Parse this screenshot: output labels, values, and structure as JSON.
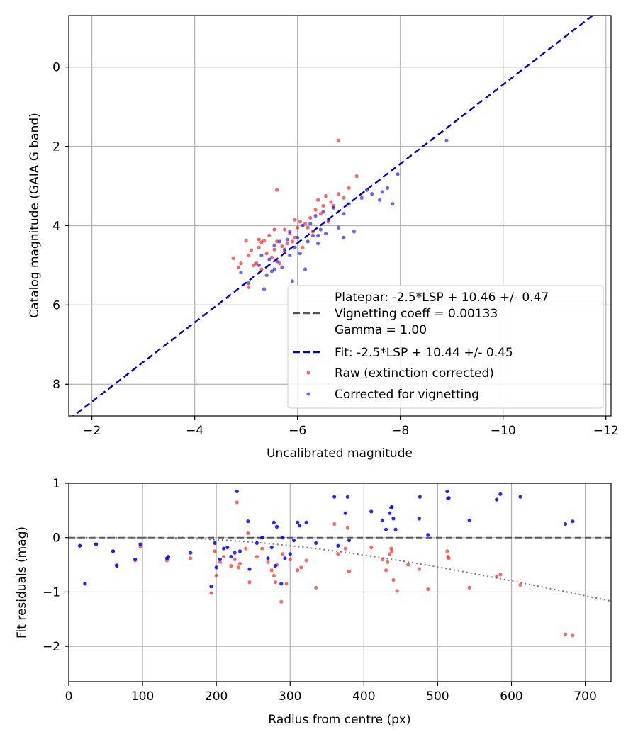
{
  "chart_data": [
    {
      "type": "scatter",
      "xlabel": "Uncalibrated magnitude",
      "ylabel": "Catalog magnitude (GAIA G band)",
      "xlim": [
        -1.55,
        -12.1
      ],
      "ylim": [
        8.8,
        -1.3
      ],
      "x_ticks": [
        -2,
        -4,
        -6,
        -8,
        -10,
        -12
      ],
      "x_tick_labels": [
        "−2",
        "−4",
        "−6",
        "−8",
        "−10",
        "−12"
      ],
      "y_ticks": [
        0,
        2,
        4,
        6,
        8
      ],
      "y_tick_labels": [
        "0",
        "2",
        "4",
        "6",
        "8"
      ],
      "grid": true,
      "legend_position": "bottom-right",
      "legend": {
        "platepar_line1": "Platepar: -2.5*LSP + 10.46 +/- 0.47",
        "platepar_line2": "Vignetting coeff = 0.00133",
        "platepar_line3": "Gamma = 1.00",
        "fit_label": "Fit: -2.5*LSP + 10.44 +/- 0.45",
        "raw_label": "Raw (extinction corrected)",
        "corrected_label": "Corrected for vignetting"
      },
      "colors": {
        "raw": "#ff0000",
        "corrected": "#0000ff",
        "fit": "#0000cc",
        "platepar": "#555555"
      },
      "fit_line": {
        "slope": 1,
        "intercept": 10.44,
        "x_range": [
          -1.55,
          -12.1
        ]
      },
      "series": [
        {
          "name": "Raw (extinction corrected)",
          "points": [
            [
              -4.75,
              4.82
            ],
            [
              -4.85,
              5.05
            ],
            [
              -5.0,
              4.38
            ],
            [
              -5.05,
              5.55
            ],
            [
              -5.1,
              4.62
            ],
            [
              -5.15,
              5.0
            ],
            [
              -5.2,
              4.95
            ],
            [
              -5.25,
              4.55
            ],
            [
              -5.3,
              5.1
            ],
            [
              -5.35,
              4.38
            ],
            [
              -5.4,
              4.7
            ],
            [
              -5.45,
              4.25
            ],
            [
              -5.5,
              4.8
            ],
            [
              -5.55,
              4.6
            ],
            [
              -5.6,
              3.1
            ],
            [
              -5.6,
              4.4
            ],
            [
              -5.65,
              4.95
            ],
            [
              -5.7,
              4.52
            ],
            [
              -5.75,
              4.1
            ],
            [
              -5.8,
              4.45
            ],
            [
              -5.85,
              4.2
            ],
            [
              -5.9,
              4.4
            ],
            [
              -5.95,
              3.85
            ],
            [
              -6.0,
              4.05
            ],
            [
              -6.05,
              3.9
            ],
            [
              -6.1,
              4.55
            ],
            [
              -6.15,
              3.95
            ],
            [
              -6.25,
              3.8
            ],
            [
              -6.3,
              4.15
            ],
            [
              -6.35,
              3.6
            ],
            [
              -6.4,
              3.35
            ],
            [
              -6.5,
              3.5
            ],
            [
              -6.55,
              3.25
            ],
            [
              -6.6,
              3.9
            ],
            [
              -6.7,
              3.5
            ],
            [
              -6.8,
              3.2
            ],
            [
              -6.8,
              1.85
            ],
            [
              -7.0,
              3.05
            ],
            [
              -7.15,
              2.75
            ],
            [
              -4.9,
              4.95
            ],
            [
              -5.05,
              4.75
            ],
            [
              -5.3,
              4.42
            ],
            [
              -5.55,
              4.1
            ],
            [
              -5.75,
              4.65
            ],
            [
              -5.95,
              4.3
            ],
            [
              -6.2,
              4.05
            ],
            [
              -6.45,
              3.7
            ],
            [
              -6.65,
              3.4
            ],
            [
              -6.9,
              3.3
            ],
            [
              -5.25,
              4.35
            ]
          ]
        },
        {
          "name": "Corrected for vignetting",
          "points": [
            [
              -4.9,
              5.18
            ],
            [
              -5.05,
              5.45
            ],
            [
              -5.25,
              5.0
            ],
            [
              -5.3,
              4.75
            ],
            [
              -5.35,
              5.6
            ],
            [
              -5.4,
              5.25
            ],
            [
              -5.45,
              4.85
            ],
            [
              -5.5,
              5.15
            ],
            [
              -5.55,
              4.5
            ],
            [
              -5.6,
              4.9
            ],
            [
              -5.65,
              4.4
            ],
            [
              -5.7,
              5.05
            ],
            [
              -5.75,
              4.6
            ],
            [
              -5.8,
              4.35
            ],
            [
              -5.85,
              4.75
            ],
            [
              -5.9,
              5.4
            ],
            [
              -5.95,
              4.55
            ],
            [
              -6.0,
              4.3
            ],
            [
              -6.05,
              4.7
            ],
            [
              -6.1,
              4.0
            ],
            [
              -6.15,
              5.1
            ],
            [
              -6.2,
              4.4
            ],
            [
              -6.25,
              3.95
            ],
            [
              -6.3,
              4.25
            ],
            [
              -6.35,
              3.75
            ],
            [
              -6.4,
              4.45
            ],
            [
              -6.45,
              4.1
            ],
            [
              -6.5,
              3.65
            ],
            [
              -6.55,
              4.2
            ],
            [
              -6.6,
              3.85
            ],
            [
              -6.7,
              3.55
            ],
            [
              -6.8,
              4.05
            ],
            [
              -6.9,
              3.7
            ],
            [
              -7.0,
              3.45
            ],
            [
              -7.1,
              4.15
            ],
            [
              -7.25,
              3.3
            ],
            [
              -7.35,
              3.1
            ],
            [
              -7.45,
              3.2
            ],
            [
              -7.6,
              3.35
            ],
            [
              -7.65,
              3.15
            ],
            [
              -7.75,
              3.05
            ],
            [
              -7.85,
              3.45
            ],
            [
              -7.95,
              2.7
            ],
            [
              -8.9,
              1.85
            ],
            [
              -6.9,
              4.3
            ],
            [
              -5.55,
              5.1
            ],
            [
              -5.85,
              4.15
            ],
            [
              -6.4,
              4.25
            ]
          ]
        }
      ]
    },
    {
      "type": "scatter",
      "xlabel": "Radius from centre (px)",
      "ylabel": "Fit residuals (mag)",
      "xlim": [
        0,
        735
      ],
      "ylim": [
        -2.65,
        1.0
      ],
      "x_ticks": [
        0,
        100,
        200,
        300,
        400,
        500,
        600,
        700
      ],
      "x_tick_labels": [
        "0",
        "100",
        "200",
        "300",
        "400",
        "500",
        "600",
        "700"
      ],
      "y_ticks": [
        1,
        0,
        -1,
        -2
      ],
      "y_tick_labels": [
        "1",
        "0",
        "−1",
        "−2"
      ],
      "grid": true,
      "reference_line": {
        "y": 0,
        "style": "dashed"
      },
      "vignetting_curve": {
        "coeff": 0.00133,
        "offset_radius": 100,
        "style": "dotted"
      },
      "series": [
        {
          "name": "Raw (extinction corrected)",
          "points": [
            [
              15,
              -0.15
            ],
            [
              22,
              -0.85
            ],
            [
              37,
              -0.12
            ],
            [
              60,
              -0.25
            ],
            [
              65,
              -0.5
            ],
            [
              90,
              -0.42
            ],
            [
              97,
              -0.17
            ],
            [
              133,
              -0.42
            ],
            [
              135,
              -0.38
            ],
            [
              165,
              -0.38
            ],
            [
              193,
              -1.02
            ],
            [
              198,
              -0.25
            ],
            [
              200,
              -0.7
            ],
            [
              205,
              -0.45
            ],
            [
              210,
              -0.35
            ],
            [
              220,
              -0.52
            ],
            [
              225,
              -0.4
            ],
            [
              228,
              0.65
            ],
            [
              230,
              -0.55
            ],
            [
              232,
              -0.48
            ],
            [
              240,
              -0.2
            ],
            [
              243,
              0.08
            ],
            [
              245,
              -0.82
            ],
            [
              255,
              -0.35
            ],
            [
              262,
              -0.2
            ],
            [
              270,
              -0.45
            ],
            [
              275,
              -0.6
            ],
            [
              278,
              -0.7
            ],
            [
              280,
              -0.82
            ],
            [
              282,
              -0.5
            ],
            [
              288,
              -1.18
            ],
            [
              290,
              -0.3
            ],
            [
              295,
              -0.85
            ],
            [
              300,
              -0.4
            ],
            [
              310,
              -0.6
            ],
            [
              315,
              -0.55
            ],
            [
              322,
              -0.42
            ],
            [
              335,
              -0.92
            ],
            [
              360,
              0.25
            ],
            [
              365,
              -0.3
            ],
            [
              375,
              -0.2
            ],
            [
              378,
              0.18
            ],
            [
              380,
              -0.62
            ],
            [
              410,
              -0.18
            ],
            [
              425,
              -0.4
            ],
            [
              430,
              -0.6
            ],
            [
              432,
              -0.45
            ],
            [
              435,
              -0.3
            ],
            [
              437,
              -0.2
            ],
            [
              438,
              -0.25
            ],
            [
              440,
              -0.78
            ],
            [
              445,
              -0.98
            ],
            [
              460,
              -0.5
            ],
            [
              475,
              -0.58
            ],
            [
              487,
              -0.95
            ],
            [
              513,
              -0.25
            ],
            [
              514,
              -0.35
            ],
            [
              515,
              -0.38
            ],
            [
              543,
              -0.92
            ],
            [
              580,
              -0.72
            ],
            [
              585,
              -0.68
            ],
            [
              612,
              -0.87
            ],
            [
              673,
              -1.78
            ],
            [
              683,
              -1.8
            ]
          ]
        },
        {
          "name": "Corrected for vignetting",
          "points": [
            [
              15,
              -0.15
            ],
            [
              22,
              -0.85
            ],
            [
              37,
              -0.12
            ],
            [
              60,
              -0.25
            ],
            [
              65,
              -0.52
            ],
            [
              90,
              -0.4
            ],
            [
              97,
              -0.12
            ],
            [
              133,
              -0.38
            ],
            [
              135,
              -0.35
            ],
            [
              165,
              -0.28
            ],
            [
              193,
              -0.9
            ],
            [
              198,
              -0.1
            ],
            [
              200,
              -0.55
            ],
            [
              205,
              -0.4
            ],
            [
              210,
              -0.2
            ],
            [
              215,
              -0.18
            ],
            [
              220,
              -0.35
            ],
            [
              225,
              -0.28
            ],
            [
              228,
              0.85
            ],
            [
              232,
              -0.25
            ],
            [
              243,
              0.3
            ],
            [
              245,
              -0.58
            ],
            [
              255,
              -0.1
            ],
            [
              262,
              0.0
            ],
            [
              270,
              -0.38
            ],
            [
              275,
              -0.18
            ],
            [
              278,
              0.28
            ],
            [
              280,
              -0.52
            ],
            [
              282,
              0.2
            ],
            [
              288,
              -0.85
            ],
            [
              290,
              0.0
            ],
            [
              293,
              -0.38
            ],
            [
              300,
              -0.3
            ],
            [
              305,
              -0.05
            ],
            [
              310,
              0.28
            ],
            [
              313,
              0.22
            ],
            [
              322,
              0.28
            ],
            [
              335,
              -0.1
            ],
            [
              360,
              0.75
            ],
            [
              365,
              -0.15
            ],
            [
              375,
              0.45
            ],
            [
              378,
              0.75
            ],
            [
              380,
              -0.05
            ],
            [
              410,
              0.48
            ],
            [
              425,
              0.32
            ],
            [
              430,
              0.15
            ],
            [
              435,
              0.45
            ],
            [
              437,
              0.55
            ],
            [
              438,
              0.57
            ],
            [
              440,
              0.35
            ],
            [
              443,
              0.15
            ],
            [
              475,
              0.35
            ],
            [
              476,
              0.75
            ],
            [
              487,
              0.05
            ],
            [
              513,
              0.85
            ],
            [
              514,
              0.72
            ],
            [
              515,
              0.73
            ],
            [
              543,
              0.32
            ],
            [
              580,
              0.7
            ],
            [
              585,
              0.8
            ],
            [
              612,
              0.75
            ],
            [
              673,
              0.25
            ],
            [
              683,
              0.3
            ]
          ]
        }
      ]
    }
  ]
}
